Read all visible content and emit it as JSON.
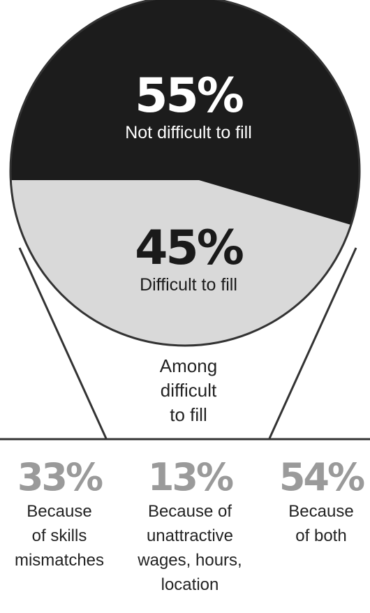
{
  "chart_data": {
    "type": "pie",
    "slices": [
      {
        "label": "Not difficult to fill",
        "percent_text": "55%",
        "value": 55,
        "color": "#1c1c1c"
      },
      {
        "label": "Difficult to fill",
        "percent_text": "45%",
        "value": 45,
        "color": "#d9d9d9"
      }
    ],
    "breakdown": {
      "caption": [
        "Among",
        "difficult",
        "to fill"
      ],
      "items": [
        {
          "percent_text": "33%",
          "value": 33,
          "lines": [
            "Because",
            "of skills",
            "mismatches"
          ]
        },
        {
          "percent_text": "13%",
          "value": 13,
          "lines": [
            "Because of",
            "unattractive",
            "wages, hours,",
            "location"
          ]
        },
        {
          "percent_text": "54%",
          "value": 54,
          "lines": [
            "Because",
            "of both"
          ]
        }
      ]
    }
  },
  "colors": {
    "dark_slice": "#1c1c1c",
    "light_slice": "#d9d9d9",
    "breakdown_percent": "#9a9a9a",
    "text_dark": "#222222",
    "lines": "#333333"
  }
}
